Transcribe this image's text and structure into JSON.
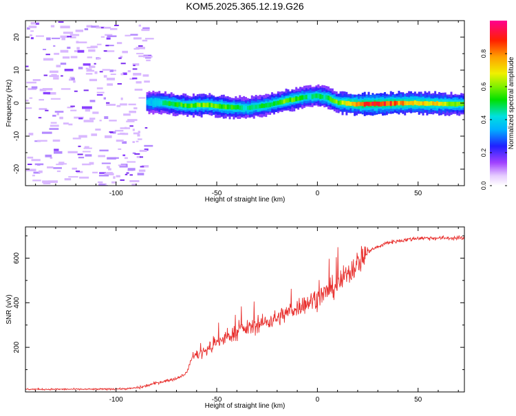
{
  "title": "KOM5.2025.365.12.19.G26",
  "chart_data": [
    {
      "type": "heatmap",
      "xlabel": "Height of straight line (km)",
      "ylabel": "Frequency (Hz)",
      "xlim": [
        -145,
        73
      ],
      "ylim": [
        -25,
        25
      ],
      "xticks": [
        "-100",
        "-50",
        "0",
        "50"
      ],
      "xtick_values": [
        -100,
        -50,
        0,
        50
      ],
      "yticks": [
        "-20",
        "-10",
        "0",
        "10",
        "20"
      ],
      "ytick_values": [
        -20,
        -10,
        0,
        10,
        20
      ],
      "colorbar": {
        "label": "Normalized spectral amplitude",
        "ticks": [
          "0.0",
          "0.2",
          "0.4",
          "0.6",
          "0.8"
        ],
        "tick_values": [
          0,
          0.2,
          0.4,
          0.6,
          0.8
        ],
        "range": [
          0,
          1
        ]
      },
      "signal_track": {
        "x": [
          -85,
          -75,
          -65,
          -55,
          -45,
          -35,
          -25,
          -15,
          -5,
          0,
          5,
          10,
          20,
          30,
          40,
          50,
          60,
          72
        ],
        "freq": [
          0.3,
          0.0,
          -0.8,
          -0.5,
          -1.2,
          -1.5,
          -0.6,
          0.8,
          2.0,
          2.2,
          1.5,
          0.2,
          -0.3,
          -0.2,
          0.0,
          0.0,
          -0.2,
          -0.3
        ],
        "amplitude": [
          0.35,
          0.5,
          0.55,
          0.6,
          0.55,
          0.45,
          0.5,
          0.6,
          0.45,
          0.45,
          0.5,
          0.6,
          0.85,
          0.9,
          0.8,
          0.75,
          0.7,
          0.55
        ]
      },
      "noise_region_x": [
        -145,
        -85
      ]
    },
    {
      "type": "line",
      "xlabel": "Height of straight line (km)",
      "ylabel": "SNR (v/v)",
      "xlim": [
        -145,
        73
      ],
      "ylim": [
        0,
        740
      ],
      "xticks": [
        "-100",
        "-50",
        "0",
        "50"
      ],
      "xtick_values": [
        -100,
        -50,
        0,
        50
      ],
      "yticks": [
        "200",
        "400",
        "600"
      ],
      "ytick_values": [
        200,
        400,
        600
      ],
      "color": "#e8302e",
      "trend": {
        "x": [
          -145,
          -110,
          -95,
          -88,
          -80,
          -70,
          -65,
          -62,
          -58,
          -50,
          -40,
          -30,
          -20,
          -10,
          0,
          10,
          20,
          25,
          35,
          50,
          60,
          73
        ],
        "y": [
          12,
          12,
          14,
          20,
          40,
          60,
          85,
          160,
          170,
          220,
          270,
          300,
          330,
          380,
          420,
          480,
          580,
          630,
          670,
          690,
          690,
          690
        ]
      }
    }
  ]
}
